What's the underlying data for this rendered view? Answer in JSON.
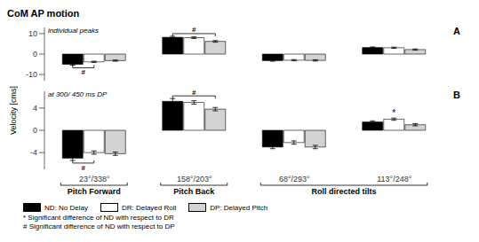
{
  "chart_data": [
    {
      "type": "bar",
      "title": "CoM AP motion",
      "subtitle": "individual peaks",
      "panel_label": "A",
      "ylabel": "Velocity [cms]",
      "categories": [
        "23°/338°",
        "158°/203°",
        "68°/293°",
        "113°/248°"
      ],
      "series": [
        {
          "name": "ND: No Delay",
          "color": "black",
          "values": [
            -5.0,
            8.2,
            -3.2,
            3.2
          ],
          "errors": [
            0.4,
            0.5,
            0.3,
            0.3
          ]
        },
        {
          "name": "DR: Delayed Roll",
          "color": "white",
          "values": [
            -3.8,
            8.0,
            -3.0,
            3.1
          ],
          "errors": [
            0.3,
            0.4,
            0.3,
            0.3
          ]
        },
        {
          "name": "DP: Delayed Pitch",
          "color": "lightgray",
          "values": [
            -3.2,
            6.2,
            -3.1,
            2.2
          ],
          "errors": [
            0.3,
            0.4,
            0.3,
            0.3
          ]
        }
      ],
      "ylim": [
        -13,
        13
      ],
      "yticks": [
        10,
        0,
        -10
      ],
      "tick_labels": "y",
      "annotations": [
        {
          "text": "#",
          "categories": [
            "23°/338°"
          ],
          "series": [
            "ND: No Delay",
            "DR: Delayed Roll"
          ]
        },
        {
          "text": "#",
          "categories": [
            "158°/203°"
          ],
          "series": [
            "ND: No Delay",
            "DP: Delayed Pitch"
          ]
        }
      ]
    },
    {
      "type": "bar",
      "subtitle": "at 300/ 450 ms DP",
      "panel_label": "B",
      "categories": [
        "23°/338°",
        "158°/203°",
        "68°/293°",
        "113°/248°"
      ],
      "series": [
        {
          "name": "ND: No Delay",
          "color": "black",
          "values": [
            -5.0,
            5.2,
            -3.0,
            1.5
          ],
          "errors": [
            0.4,
            0.5,
            0.3,
            0.2
          ]
        },
        {
          "name": "DR: Delayed Roll",
          "color": "white",
          "values": [
            -4.0,
            5.0,
            -2.2,
            2.0
          ],
          "errors": [
            0.3,
            0.3,
            0.3,
            0.2
          ]
        },
        {
          "name": "DP: Delayed Pitch",
          "color": "lightgray",
          "values": [
            -4.2,
            3.8,
            -3.0,
            1.0
          ],
          "errors": [
            0.3,
            0.3,
            0.3,
            0.2
          ]
        }
      ],
      "ylim": [
        -7,
        7
      ],
      "yticks": [
        4,
        0,
        -4
      ],
      "legend": "lower left",
      "annotations": [
        {
          "text": "#",
          "categories": [
            "23°/338°"
          ],
          "series": [
            "ND: No Delay",
            "DR: Delayed Roll"
          ]
        },
        {
          "text": "#",
          "categories": [
            "158°/203°"
          ],
          "series": [
            "ND: No Delay",
            "DP: Delayed Pitch"
          ]
        },
        {
          "text": "*",
          "categories": [
            "113°/248°"
          ]
        }
      ],
      "category_groups": [
        {
          "text": "Pitch Forward",
          "categories": [
            "23°/338°"
          ]
        },
        {
          "text": "Pitch Back",
          "categories": [
            "158°/203°"
          ]
        },
        {
          "text": "Roll directed tilts",
          "categories": [
            "68°/293°",
            "113°/248°"
          ]
        }
      ],
      "footnotes": [
        "* Significant difference of ND with respect to DR",
        "# Significant difference of ND with respect to DP"
      ]
    }
  ]
}
